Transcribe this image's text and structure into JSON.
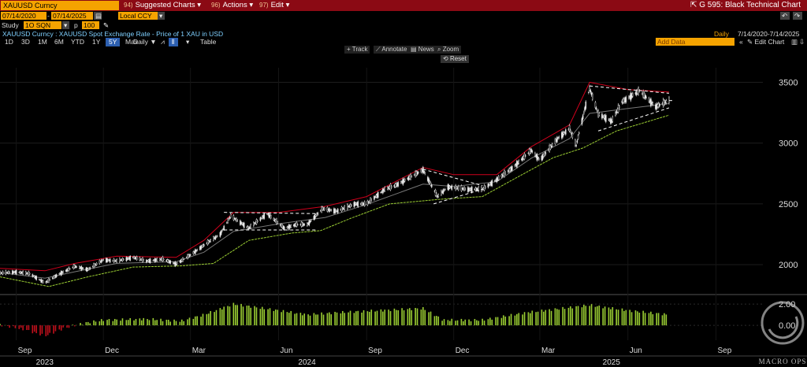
{
  "toolbar": {
    "ticker": "XAUUSD Curncy",
    "menus": [
      {
        "num": "94)",
        "label": "Suggested Charts"
      },
      {
        "num": "96)",
        "label": "Actions"
      },
      {
        "num": "97)",
        "label": "Edit"
      }
    ],
    "chart_title": "G 595: Black Technical Chart"
  },
  "controls": {
    "start_date": "07/14/2020",
    "end_date": "07/14/2025",
    "currency": "Local CCY",
    "study_label": "Study",
    "study_value": "1O SQN",
    "p_label": "p",
    "p_value": "100"
  },
  "description": "XAUUSD Curncy : XAUUSD Spot Exchange Rate - Price of 1 XAU in USD",
  "period": "Daily",
  "period_range": "7/14/2020-7/14/2025",
  "ranges": [
    "1D",
    "3D",
    "1M",
    "6M",
    "YTD",
    "1Y",
    "5Y",
    "Max"
  ],
  "selected_range": "5Y",
  "freq": "Daily ▼",
  "table_label": "Table",
  "add_data": "Add Data",
  "edit_chart": "Edit Chart",
  "tools": [
    "Track",
    "Annotate",
    "News",
    "Zoom"
  ],
  "reset_label": "Reset",
  "watermark": "MACRO OPS",
  "colors": {
    "candle": "#e8e8e8",
    "upper_band": "#d0001c",
    "lower_band": "#9acd32",
    "mid": "#777777",
    "pattern": "#ffffff",
    "hist_pos": "#9acd32",
    "hist_neg": "#c0101c"
  },
  "chart_data": {
    "type": "line",
    "title": "",
    "price_axis": {
      "ylim": [
        1780,
        3620
      ],
      "ticks": [
        2000,
        2500,
        3000,
        3500
      ]
    },
    "indicator_axis": {
      "ticks": [
        "2.00",
        "0.00"
      ]
    },
    "x_tick_labels": [
      "Sep",
      "Dec",
      "Mar",
      "Jun",
      "Sep",
      "Dec",
      "Mar",
      "Jun",
      "Sep"
    ],
    "x_year_labels": [
      "2023",
      "2024",
      "2025"
    ],
    "price_series": [
      {
        "date": "2023-08-15",
        "value": 1930
      },
      {
        "date": "2023-09-01",
        "value": 1940
      },
      {
        "date": "2023-09-15",
        "value": 1925
      },
      {
        "date": "2023-10-01",
        "value": 1850
      },
      {
        "date": "2023-10-15",
        "value": 1920
      },
      {
        "date": "2023-11-01",
        "value": 1985
      },
      {
        "date": "2023-11-15",
        "value": 1960
      },
      {
        "date": "2023-12-01",
        "value": 2040
      },
      {
        "date": "2023-12-15",
        "value": 2030
      },
      {
        "date": "2024-01-01",
        "value": 2060
      },
      {
        "date": "2024-01-15",
        "value": 2030
      },
      {
        "date": "2024-02-01",
        "value": 2045
      },
      {
        "date": "2024-02-15",
        "value": 2005
      },
      {
        "date": "2024-03-01",
        "value": 2080
      },
      {
        "date": "2024-03-15",
        "value": 2160
      },
      {
        "date": "2024-04-01",
        "value": 2250
      },
      {
        "date": "2024-04-12",
        "value": 2400
      },
      {
        "date": "2024-05-01",
        "value": 2300
      },
      {
        "date": "2024-05-20",
        "value": 2420
      },
      {
        "date": "2024-06-07",
        "value": 2300
      },
      {
        "date": "2024-06-20",
        "value": 2330
      },
      {
        "date": "2024-07-01",
        "value": 2330
      },
      {
        "date": "2024-07-17",
        "value": 2460
      },
      {
        "date": "2024-08-01",
        "value": 2440
      },
      {
        "date": "2024-08-20",
        "value": 2500
      },
      {
        "date": "2024-09-01",
        "value": 2500
      },
      {
        "date": "2024-09-20",
        "value": 2620
      },
      {
        "date": "2024-10-01",
        "value": 2650
      },
      {
        "date": "2024-10-30",
        "value": 2780
      },
      {
        "date": "2024-11-14",
        "value": 2560
      },
      {
        "date": "2024-11-25",
        "value": 2640
      },
      {
        "date": "2024-12-15",
        "value": 2620
      },
      {
        "date": "2024-12-31",
        "value": 2620
      },
      {
        "date": "2025-01-15",
        "value": 2700
      },
      {
        "date": "2025-02-01",
        "value": 2800
      },
      {
        "date": "2025-02-20",
        "value": 2940
      },
      {
        "date": "2025-03-01",
        "value": 2860
      },
      {
        "date": "2025-03-20",
        "value": 3040
      },
      {
        "date": "2025-04-01",
        "value": 3120
      },
      {
        "date": "2025-04-08",
        "value": 2980
      },
      {
        "date": "2025-04-22",
        "value": 3450
      },
      {
        "date": "2025-05-01",
        "value": 3240
      },
      {
        "date": "2025-05-15",
        "value": 3180
      },
      {
        "date": "2025-05-26",
        "value": 3340
      },
      {
        "date": "2025-06-13",
        "value": 3430
      },
      {
        "date": "2025-06-30",
        "value": 3300
      },
      {
        "date": "2025-07-14",
        "value": 3350
      }
    ],
    "upper_band": [
      {
        "date": "2023-08-15",
        "value": 1970
      },
      {
        "date": "2023-10-01",
        "value": 1950
      },
      {
        "date": "2023-11-01",
        "value": 2010
      },
      {
        "date": "2023-12-15",
        "value": 2070
      },
      {
        "date": "2024-02-15",
        "value": 2060
      },
      {
        "date": "2024-03-15",
        "value": 2200
      },
      {
        "date": "2024-04-15",
        "value": 2430
      },
      {
        "date": "2024-06-01",
        "value": 2430
      },
      {
        "date": "2024-07-20",
        "value": 2480
      },
      {
        "date": "2024-09-01",
        "value": 2560
      },
      {
        "date": "2024-10-30",
        "value": 2800
      },
      {
        "date": "2024-12-01",
        "value": 2740
      },
      {
        "date": "2025-01-15",
        "value": 2740
      },
      {
        "date": "2025-02-20",
        "value": 2970
      },
      {
        "date": "2025-04-01",
        "value": 3150
      },
      {
        "date": "2025-04-22",
        "value": 3500
      },
      {
        "date": "2025-06-01",
        "value": 3440
      },
      {
        "date": "2025-07-14",
        "value": 3420
      }
    ],
    "lower_band": [
      {
        "date": "2023-08-15",
        "value": 1900
      },
      {
        "date": "2023-10-05",
        "value": 1820
      },
      {
        "date": "2023-11-15",
        "value": 1900
      },
      {
        "date": "2024-01-01",
        "value": 1980
      },
      {
        "date": "2024-02-20",
        "value": 1990
      },
      {
        "date": "2024-03-25",
        "value": 2010
      },
      {
        "date": "2024-05-01",
        "value": 2200
      },
      {
        "date": "2024-06-15",
        "value": 2260
      },
      {
        "date": "2024-07-15",
        "value": 2280
      },
      {
        "date": "2024-08-15",
        "value": 2380
      },
      {
        "date": "2024-09-25",
        "value": 2500
      },
      {
        "date": "2024-11-20",
        "value": 2540
      },
      {
        "date": "2024-12-31",
        "value": 2560
      },
      {
        "date": "2025-02-01",
        "value": 2700
      },
      {
        "date": "2025-03-15",
        "value": 2880
      },
      {
        "date": "2025-04-15",
        "value": 2960
      },
      {
        "date": "2025-05-20",
        "value": 3100
      },
      {
        "date": "2025-07-14",
        "value": 3230
      }
    ],
    "patterns": [
      {
        "from": {
          "date": "2024-04-05",
          "value": 2430
        },
        "to": {
          "date": "2024-07-10",
          "value": 2420
        }
      },
      {
        "from": {
          "date": "2024-04-05",
          "value": 2285
        },
        "to": {
          "date": "2024-07-10",
          "value": 2285
        }
      },
      {
        "from": {
          "date": "2024-10-30",
          "value": 2785
        },
        "to": {
          "date": "2024-12-31",
          "value": 2650
        }
      },
      {
        "from": {
          "date": "2024-11-10",
          "value": 2500
        },
        "to": {
          "date": "2024-12-31",
          "value": 2620
        }
      },
      {
        "from": {
          "date": "2025-04-22",
          "value": 3470
        },
        "to": {
          "date": "2025-07-14",
          "value": 3410
        }
      },
      {
        "from": {
          "date": "2025-05-01",
          "value": 3100
        },
        "to": {
          "date": "2025-07-14",
          "value": 3290
        }
      }
    ],
    "indicator_series": [
      {
        "date": "2023-08-15",
        "value": 0.05
      },
      {
        "date": "2023-09-10",
        "value": -0.4
      },
      {
        "date": "2023-10-01",
        "value": -1.0
      },
      {
        "date": "2023-10-20",
        "value": -0.3
      },
      {
        "date": "2023-11-10",
        "value": 0.2
      },
      {
        "date": "2023-12-01",
        "value": 0.5
      },
      {
        "date": "2024-01-15",
        "value": 0.6
      },
      {
        "date": "2024-02-20",
        "value": 0.4
      },
      {
        "date": "2024-03-15",
        "value": 1.0
      },
      {
        "date": "2024-04-15",
        "value": 2.0
      },
      {
        "date": "2024-06-01",
        "value": 1.4
      },
      {
        "date": "2024-07-01",
        "value": 1.0
      },
      {
        "date": "2024-08-01",
        "value": 1.2
      },
      {
        "date": "2024-09-15",
        "value": 1.4
      },
      {
        "date": "2024-10-30",
        "value": 1.6
      },
      {
        "date": "2024-11-20",
        "value": 0.5
      },
      {
        "date": "2024-12-31",
        "value": 0.5
      },
      {
        "date": "2025-02-15",
        "value": 1.2
      },
      {
        "date": "2025-04-22",
        "value": 1.9
      },
      {
        "date": "2025-06-01",
        "value": 1.4
      },
      {
        "date": "2025-07-14",
        "value": 1.0
      }
    ]
  }
}
